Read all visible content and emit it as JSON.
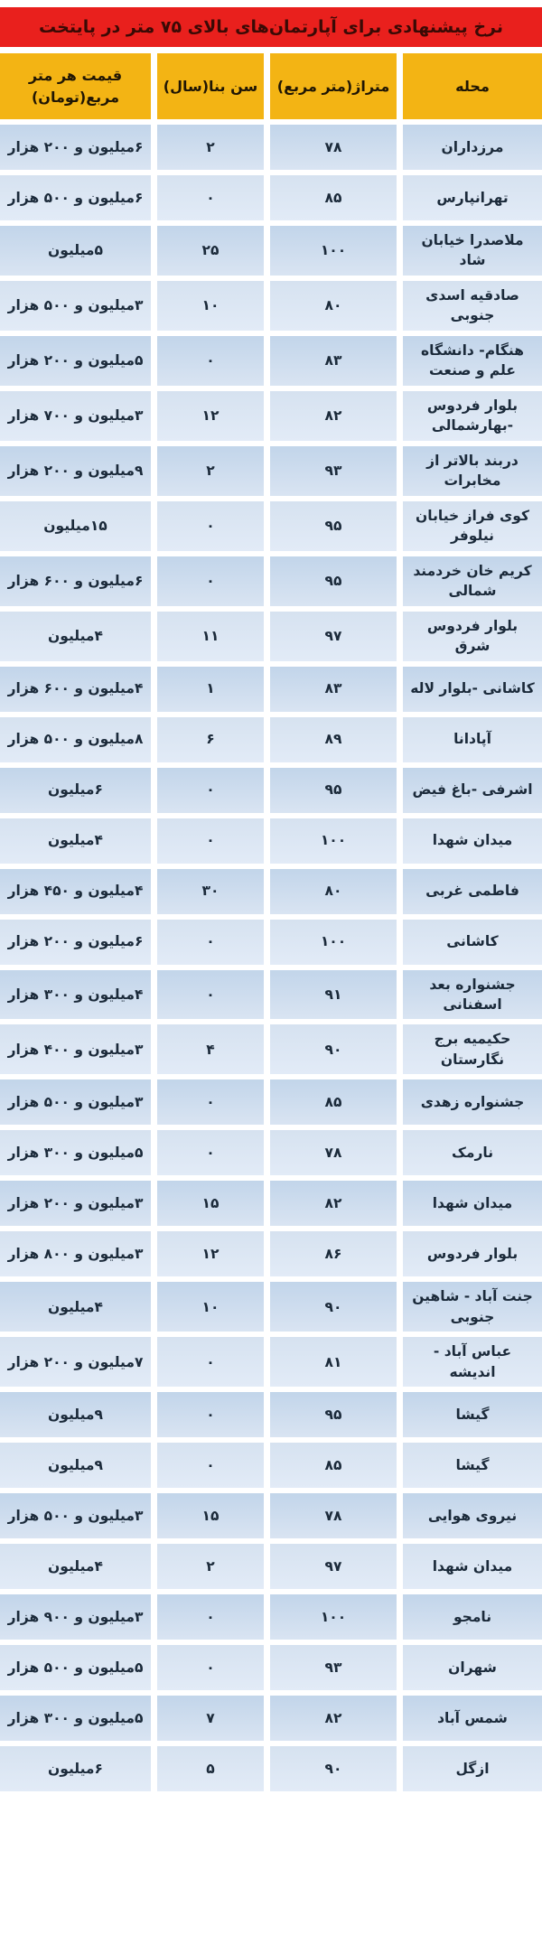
{
  "title": "نرخ پیشنهادی برای آپارتمان‌های بالای ۷۵ متر در پایتخت",
  "colors": {
    "title_background": "#e9201d",
    "title_text": "#3a0a05",
    "header_background": "#f3b414",
    "header_text": "#201604",
    "row_odd_blue": "#c2d5ea",
    "row_even_blue": "#dce7f4",
    "cell_text": "#1b2a3a",
    "gutter": "#ffffff"
  },
  "chart_data": {
    "type": "table",
    "title": "نرخ پیشنهادی برای آپارتمان‌های بالای ۷۵ متر در پایتخت",
    "columns": [
      "محله",
      "متراژ(متر مربع)",
      "سن بنا(سال)",
      "قیمت هر متر مربع(تومان)"
    ],
    "rows": [
      [
        "مرزداران",
        "۷۸",
        "۲",
        "۶میلیون و ۲۰۰ هزار"
      ],
      [
        "تهرانپارس",
        "۸۵",
        "۰",
        "۶میلیون و ۵۰۰ هزار"
      ],
      [
        "ملاصدرا خیابان شاد",
        "۱۰۰",
        "۲۵",
        "۵میلیون"
      ],
      [
        "صادقیه اسدی جنوبی",
        "۸۰",
        "۱۰",
        "۳میلیون و ۵۰۰ هزار"
      ],
      [
        "هنگام- دانشگاه علم و صنعت",
        "۸۳",
        "۰",
        "۵میلیون و ۲۰۰ هزار"
      ],
      [
        "بلوار فردوس -بهارشمالی",
        "۸۲",
        "۱۲",
        "۳میلیون و ۷۰۰ هزار"
      ],
      [
        "دربند بالاتر از مخابرات",
        "۹۳",
        "۲",
        "۹میلیون و ۲۰۰ هزار"
      ],
      [
        "کوی فراز خیابان نیلوفر",
        "۹۵",
        "۰",
        "۱۵میلیون"
      ],
      [
        "کریم خان خردمند شمالی",
        "۹۵",
        "۰",
        "۶میلیون و ۶۰۰ هزار"
      ],
      [
        "بلوار فردوس شرق",
        "۹۷",
        "۱۱",
        "۴میلیون"
      ],
      [
        "کاشانی -بلوار لاله",
        "۸۳",
        "۱",
        "۴میلیون و ۶۰۰ هزار"
      ],
      [
        "آپادانا",
        "۸۹",
        "۶",
        "۸میلیون و ۵۰۰ هزار"
      ],
      [
        "اشرفی -باغ فیض",
        "۹۵",
        "۰",
        "۶میلیون"
      ],
      [
        "میدان شهدا",
        "۱۰۰",
        "۰",
        "۴میلیون"
      ],
      [
        "فاطمی غربی",
        "۸۰",
        "۳۰",
        "۴میلیون و ۴۵۰ هزار"
      ],
      [
        "کاشانی",
        "۱۰۰",
        "۰",
        "۶میلیون و ۲۰۰ هزار"
      ],
      [
        "جشنواره بعد اسفنانی",
        "۹۱",
        "۰",
        "۴میلیون و ۳۰۰ هزار"
      ],
      [
        "حکیمیه برج نگارستان",
        "۹۰",
        "۴",
        "۳میلیون و ۴۰۰ هزار"
      ],
      [
        "جشنواره زهدی",
        "۸۵",
        "۰",
        "۳میلیون و ۵۰۰ هزار"
      ],
      [
        "نارمک",
        "۷۸",
        "۰",
        "۵میلیون و ۳۰۰ هزار"
      ],
      [
        "میدان شهدا",
        "۸۲",
        "۱۵",
        "۳میلیون و ۲۰۰ هزار"
      ],
      [
        "بلوار فردوس",
        "۸۶",
        "۱۲",
        "۳میلیون و ۸۰۰ هزار"
      ],
      [
        "جنت آباد - شاهین جنوبی",
        "۹۰",
        "۱۰",
        "۴میلیون"
      ],
      [
        "عباس آباد - اندیشه",
        "۸۱",
        "۰",
        "۷میلیون و ۲۰۰ هزار"
      ],
      [
        "گیشا",
        "۹۵",
        "۰",
        "۹میلیون"
      ],
      [
        "گیشا",
        "۸۵",
        "۰",
        "۹میلیون"
      ],
      [
        "نیروی هوایی",
        "۷۸",
        "۱۵",
        "۳میلیون و ۵۰۰ هزار"
      ],
      [
        "میدان شهدا",
        "۹۷",
        "۲",
        "۴میلیون"
      ],
      [
        "نامجو",
        "۱۰۰",
        "۰",
        "۳میلیون و ۹۰۰ هزار"
      ],
      [
        "شهران",
        "۹۳",
        "۰",
        "۵میلیون و ۵۰۰ هزار"
      ],
      [
        "شمس آباد",
        "۸۲",
        "۷",
        "۵میلیون و ۳۰۰ هزار"
      ],
      [
        "ازگل",
        "۹۰",
        "۵",
        "۶میلیون"
      ]
    ]
  }
}
